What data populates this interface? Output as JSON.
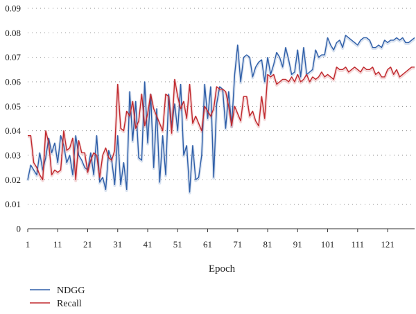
{
  "chart_data": {
    "type": "line",
    "title": "",
    "xlabel": "Epoch",
    "ylabel": "",
    "xlim": [
      1,
      130
    ],
    "ylim": [
      0,
      0.09
    ],
    "grid": "horizontal-dotted",
    "legend_position": "bottom-left",
    "x_ticks": [
      1,
      11,
      21,
      31,
      41,
      51,
      61,
      71,
      81,
      91,
      101,
      111,
      121
    ],
    "y_ticks": [
      0,
      0.01,
      0.02,
      0.03,
      0.04,
      0.05,
      0.06,
      0.07,
      0.08,
      0.09
    ],
    "x_tick_labels": [
      "1",
      "11",
      "21",
      "31",
      "41",
      "51",
      "61",
      "71",
      "81",
      "91",
      "101",
      "111",
      "121"
    ],
    "y_tick_labels": [
      "0",
      "0.01",
      "0.02",
      "0.03",
      "0.04",
      "0.05",
      "0.06",
      "0.07",
      "0.08",
      "0.09"
    ],
    "x_start": 1,
    "series": [
      {
        "name": "NDGG",
        "color": "#2e5ea8",
        "values": [
          0.02,
          0.026,
          0.024,
          0.022,
          0.031,
          0.024,
          0.029,
          0.037,
          0.031,
          0.035,
          0.027,
          0.038,
          0.034,
          0.027,
          0.03,
          0.022,
          0.038,
          0.03,
          0.028,
          0.025,
          0.024,
          0.031,
          0.022,
          0.038,
          0.019,
          0.021,
          0.016,
          0.032,
          0.028,
          0.018,
          0.038,
          0.018,
          0.027,
          0.016,
          0.056,
          0.036,
          0.052,
          0.029,
          0.028,
          0.06,
          0.035,
          0.055,
          0.025,
          0.049,
          0.019,
          0.038,
          0.022,
          0.055,
          0.042,
          0.051,
          0.04,
          0.059,
          0.03,
          0.034,
          0.015,
          0.034,
          0.02,
          0.021,
          0.03,
          0.059,
          0.045,
          0.058,
          0.021,
          0.051,
          0.058,
          0.057,
          0.041,
          0.056,
          0.042,
          0.063,
          0.075,
          0.06,
          0.07,
          0.071,
          0.07,
          0.062,
          0.066,
          0.068,
          0.069,
          0.06,
          0.07,
          0.063,
          0.067,
          0.072,
          0.07,
          0.066,
          0.074,
          0.069,
          0.063,
          0.064,
          0.073,
          0.062,
          0.074,
          0.063,
          0.064,
          0.065,
          0.073,
          0.07,
          0.071,
          0.071,
          0.078,
          0.075,
          0.073,
          0.076,
          0.077,
          0.074,
          0.079,
          0.078,
          0.077,
          0.076,
          0.075,
          0.077,
          0.078,
          0.078,
          0.077,
          0.074,
          0.074,
          0.075,
          0.074,
          0.077,
          0.076,
          0.077,
          0.077,
          0.078,
          0.077,
          0.078,
          0.076,
          0.076,
          0.077,
          0.078
        ]
      },
      {
        "name": "Recall",
        "color": "#c0282d",
        "values": [
          0.038,
          0.038,
          0.027,
          0.025,
          0.022,
          0.02,
          0.04,
          0.035,
          0.022,
          0.024,
          0.023,
          0.024,
          0.04,
          0.032,
          0.033,
          0.037,
          0.02,
          0.036,
          0.031,
          0.031,
          0.023,
          0.028,
          0.031,
          0.03,
          0.021,
          0.03,
          0.033,
          0.029,
          0.028,
          0.032,
          0.059,
          0.041,
          0.04,
          0.048,
          0.046,
          0.052,
          0.041,
          0.044,
          0.055,
          0.042,
          0.047,
          0.055,
          0.049,
          0.046,
          0.043,
          0.04,
          0.055,
          0.054,
          0.039,
          0.061,
          0.054,
          0.049,
          0.052,
          0.045,
          0.059,
          0.043,
          0.046,
          0.043,
          0.04,
          0.05,
          0.048,
          0.046,
          0.049,
          0.058,
          0.057,
          0.057,
          0.056,
          0.05,
          0.042,
          0.05,
          0.047,
          0.044,
          0.054,
          0.054,
          0.046,
          0.048,
          0.044,
          0.042,
          0.054,
          0.045,
          0.063,
          0.062,
          0.063,
          0.059,
          0.06,
          0.061,
          0.061,
          0.06,
          0.062,
          0.06,
          0.063,
          0.06,
          0.061,
          0.063,
          0.06,
          0.062,
          0.061,
          0.062,
          0.064,
          0.062,
          0.063,
          0.062,
          0.061,
          0.066,
          0.065,
          0.065,
          0.066,
          0.064,
          0.065,
          0.066,
          0.065,
          0.064,
          0.066,
          0.065,
          0.065,
          0.066,
          0.063,
          0.064,
          0.062,
          0.062,
          0.065,
          0.066,
          0.063,
          0.065,
          0.062,
          0.063,
          0.064,
          0.065,
          0.066,
          0.066
        ]
      }
    ]
  }
}
